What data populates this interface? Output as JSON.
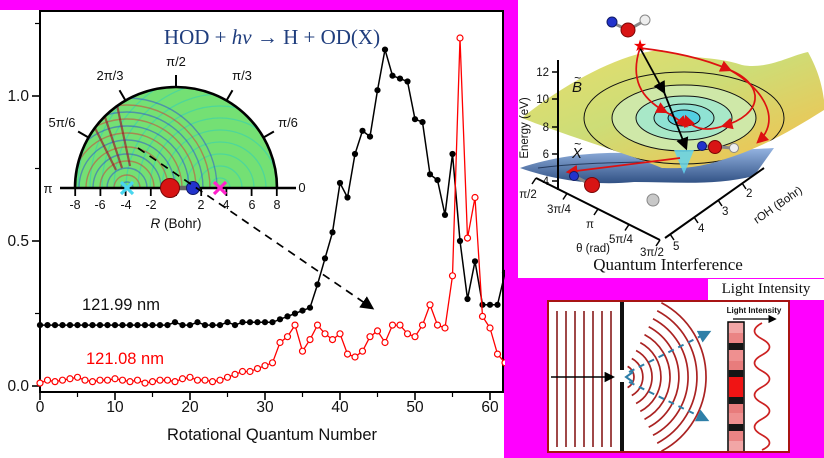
{
  "chart_data": {
    "type": "line",
    "title": "HOD + hv → H + OD(X)",
    "title_parts": [
      "HOD + ",
      "hv",
      " → H + OD(X)"
    ],
    "xlabel": "Rotational Quantum Number",
    "ylabel": "",
    "x_range": [
      0,
      62
    ],
    "ylim": [
      0,
      1.25
    ],
    "x_ticks": [
      "0",
      "10",
      "20",
      "30",
      "40",
      "50",
      "60"
    ],
    "y_tick_labels": [
      "0.0",
      "0.5",
      "1.0"
    ],
    "grid": false,
    "legend_position": "inline-labels",
    "series": [
      {
        "name": "121.99 nm",
        "color": "#000000",
        "marker": "filled_circle",
        "x_start": 0,
        "values": [
          0.21,
          0.21,
          0.21,
          0.21,
          0.21,
          0.21,
          0.21,
          0.21,
          0.21,
          0.21,
          0.21,
          0.21,
          0.21,
          0.21,
          0.21,
          0.21,
          0.21,
          0.21,
          0.22,
          0.21,
          0.21,
          0.22,
          0.21,
          0.21,
          0.21,
          0.22,
          0.21,
          0.22,
          0.22,
          0.22,
          0.22,
          0.22,
          0.23,
          0.24,
          0.25,
          0.26,
          0.27,
          0.35,
          0.44,
          0.53,
          0.7,
          0.65,
          0.8,
          0.88,
          0.86,
          1.02,
          1.16,
          1.07,
          1.06,
          1.05,
          0.92,
          0.91,
          0.73,
          0.71,
          0.59,
          0.8,
          0.5,
          0.3,
          0.43,
          0.28,
          0.28,
          0.28,
          0.39
        ]
      },
      {
        "name": "121.08 nm",
        "color": "#ff0000",
        "marker": "open_circle",
        "x_start": 0,
        "values": [
          0.01,
          0.02,
          0.015,
          0.02,
          0.025,
          0.03,
          0.02,
          0.015,
          0.02,
          0.02,
          0.025,
          0.02,
          0.015,
          0.02,
          0.01,
          0.015,
          0.02,
          0.02,
          0.015,
          0.025,
          0.03,
          0.02,
          0.02,
          0.015,
          0.02,
          0.03,
          0.04,
          0.05,
          0.05,
          0.06,
          0.07,
          0.08,
          0.15,
          0.17,
          0.21,
          0.12,
          0.16,
          0.21,
          0.18,
          0.16,
          0.18,
          0.11,
          0.1,
          0.12,
          0.17,
          0.19,
          0.15,
          0.21,
          0.21,
          0.18,
          0.17,
          0.21,
          0.28,
          0.21,
          0.2,
          0.38,
          1.2,
          0.51,
          0.65,
          0.24,
          0.2,
          0.11,
          0.08
        ]
      }
    ]
  },
  "inset": {
    "angle_labels": [
      "0",
      "π/6",
      "π/3",
      "π/2",
      "2π/3",
      "5π/6",
      "π"
    ],
    "r_tick_labels": [
      "-8",
      "-6",
      "-4",
      "-2",
      "2",
      "4",
      "6",
      "8"
    ],
    "r_label_italic": "R",
    "r_label_rest": " (Bohr)"
  },
  "surface_plot": {
    "energy_label": "Energy (eV)",
    "energy_ticks": [
      "12",
      "10",
      "8",
      "6",
      "4"
    ],
    "theta_label": "θ (rad)",
    "theta_ticks": [
      "π/2",
      "3π/4",
      "π",
      "5π/4",
      "3π/2"
    ],
    "roh_label": "rOH (Bohr)",
    "roh_ticks": [
      "5",
      "4",
      "3",
      "2"
    ],
    "upper_state_letter": "B",
    "lower_state_letter": "X",
    "state_tilde": "~",
    "caption": "Quantum Interference"
  },
  "wave_diagram": {
    "outer_label": "Light Intensity",
    "inner_label": "Light Intensity",
    "bar_segments": [
      {
        "color": "#f2a6a6",
        "h": 11
      },
      {
        "color": "#ea8484",
        "h": 10
      },
      {
        "color": "#151515",
        "h": 7
      },
      {
        "color": "#ef9090",
        "h": 11
      },
      {
        "color": "#e87c7c",
        "h": 9
      },
      {
        "color": "#151515",
        "h": 7
      },
      {
        "color": "#f01414",
        "h": 20
      },
      {
        "color": "#151515",
        "h": 7
      },
      {
        "color": "#e87c7c",
        "h": 9
      },
      {
        "color": "#ef9090",
        "h": 11
      },
      {
        "color": "#151515",
        "h": 7
      },
      {
        "color": "#ea8484",
        "h": 10
      },
      {
        "color": "#f2a6a6",
        "h": 11
      }
    ]
  },
  "colors": {
    "frame_magenta": "#ff00ff",
    "title_navy": "#1f3d7d",
    "series_black": "#000000",
    "series_red": "#ff0000",
    "inset_green": "#74e074",
    "wave_red": "#a04848",
    "panel_border_red": "#a81414"
  }
}
